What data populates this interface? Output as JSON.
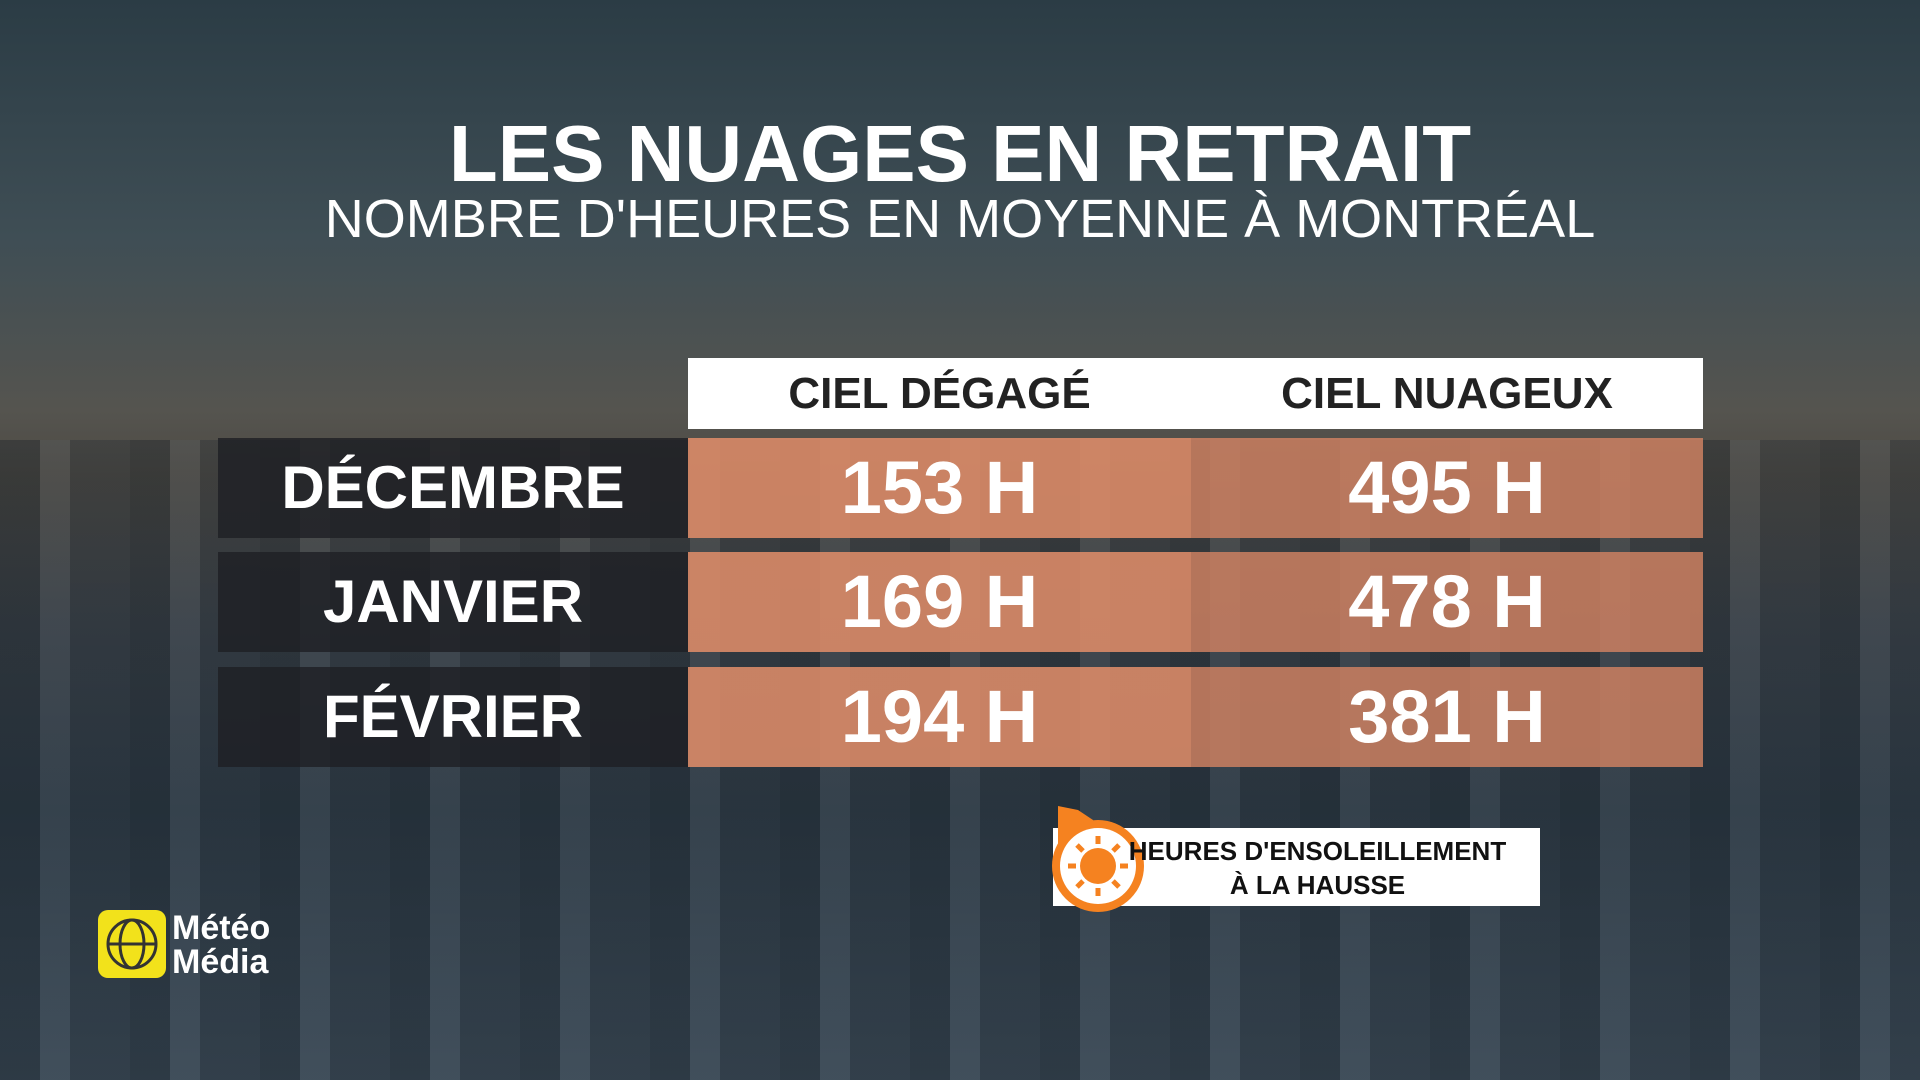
{
  "header": {
    "title": "LES NUAGES EN RETRAIT",
    "subtitle": "NOMBRE D'HEURES EN MOYENNE À MONTRÉAL"
  },
  "table": {
    "columns": [
      "CIEL DÉGAGÉ",
      "CIEL NUAGEUX"
    ],
    "rows": [
      [
        "DÉCEMBRE",
        "153 H",
        "495 H"
      ],
      [
        "JANVIER",
        "169 H",
        "478 H"
      ],
      [
        "FÉVRIER",
        "194 H",
        "381 H"
      ]
    ]
  },
  "badge": {
    "lines": [
      "HEURES D'ENSOLEILLEMENT",
      "À LA HAUSSE"
    ]
  },
  "logo": {
    "lines": [
      "Météo",
      "Média"
    ]
  }
}
